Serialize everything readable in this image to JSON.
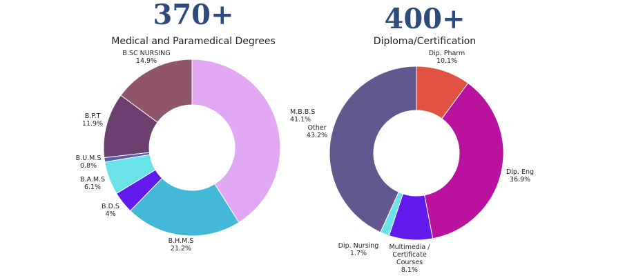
{
  "chart_data": [
    {
      "type": "pie",
      "big_number": "370+",
      "title": "Medical and Paramedical Degrees",
      "slices": [
        {
          "label": "M.B.B.S",
          "value": 41.1,
          "display": "41.1%",
          "color": "#e2a7f2"
        },
        {
          "label": "B.H.M.S",
          "value": 21.2,
          "display": "21.2%",
          "color": "#42b7d6"
        },
        {
          "label": "B.D.S",
          "value": 4,
          "display": "4%",
          "color": "#611aeb"
        },
        {
          "label": "B.A.M.S",
          "value": 6.1,
          "display": "6.1%",
          "color": "#6ae3e8"
        },
        {
          "label": "B.U.M.S",
          "value": 0.8,
          "display": "0.8%",
          "color": "#5b5bb0"
        },
        {
          "label": "B.P.T",
          "value": 11.9,
          "display": "11.9%",
          "color": "#6d3f70"
        },
        {
          "label": "B.SC NURSING",
          "value": 14.9,
          "display": "14.9%",
          "color": "#8f556a"
        }
      ]
    },
    {
      "type": "pie",
      "big_number": "400+",
      "title": "Diploma/Certification",
      "slices": [
        {
          "label": "Dip. Pharm",
          "value": 10.1,
          "display": "10.1%",
          "color": "#e05241"
        },
        {
          "label": "Dip. Eng",
          "value": 36.9,
          "display": "36.9%",
          "color": "#b8129e"
        },
        {
          "label": "Multimedia / Certificate Courses",
          "value": 8.1,
          "display": "8.1%",
          "color": "#611aeb"
        },
        {
          "label": "Dip. Nursing",
          "value": 1.7,
          "display": "1.7%",
          "color": "#6ae3e8"
        },
        {
          "label": "Other",
          "value": 43.2,
          "display": "43.2%",
          "color": "#62588f"
        }
      ]
    }
  ]
}
